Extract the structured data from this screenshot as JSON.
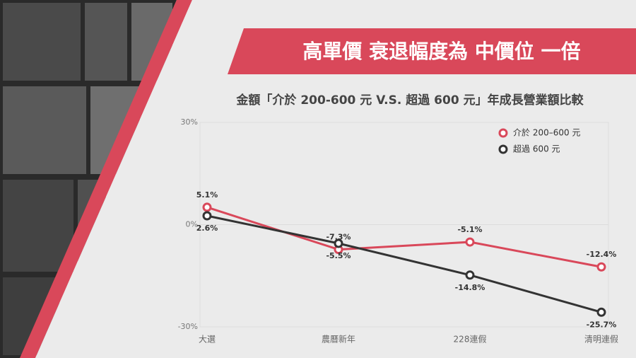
{
  "banner": "高單價 衰退幅度為 中價位 一倍",
  "chart_data": {
    "type": "line",
    "title": "金額「介於 200-600 元 V.S. 超過 600 元」年成長營業額比較",
    "categories": [
      "大選",
      "農曆新年",
      "228連假",
      "清明連假"
    ],
    "series": [
      {
        "name": "介於 200–600 元",
        "color": "#d9485a",
        "values": [
          5.1,
          -7.3,
          -5.1,
          -12.4
        ],
        "value_labels": [
          "5.1%",
          "-7.3%",
          "-5.1%",
          "-12.4%"
        ]
      },
      {
        "name": "超過 600 元",
        "color": "#333333",
        "values": [
          2.6,
          -5.5,
          -14.8,
          -25.7
        ],
        "value_labels": [
          "2.6%",
          "-5.5%",
          "-14.8%",
          "-25.7%"
        ]
      }
    ],
    "ylim": [
      -30,
      30
    ],
    "yticks": [
      {
        "value": 30,
        "label": "30%"
      },
      {
        "value": 0,
        "label": "0%"
      },
      {
        "value": -30,
        "label": "-30%"
      }
    ],
    "grid": true,
    "legend": "top-right"
  }
}
